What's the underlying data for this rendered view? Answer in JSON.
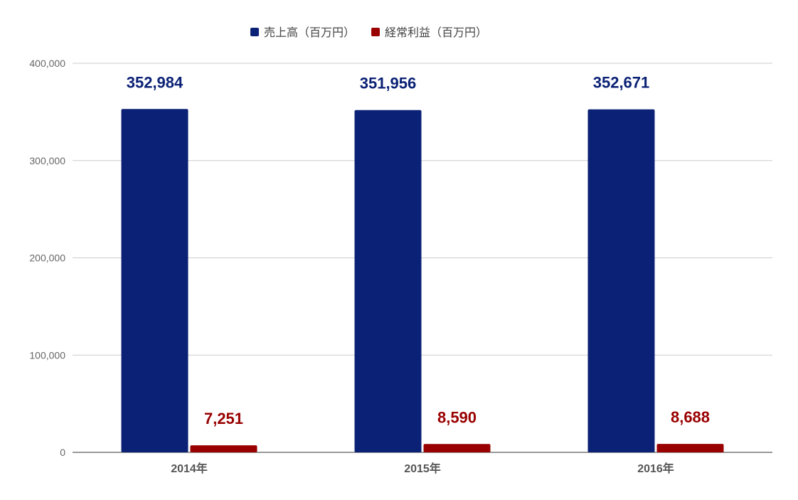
{
  "chart_data": {
    "type": "bar",
    "categories": [
      "2014年",
      "2015年",
      "2016年"
    ],
    "series": [
      {
        "name": "売上高（百万円）",
        "values": [
          352984,
          351956,
          352671
        ],
        "color": "#0b2175"
      },
      {
        "name": "経常利益（百万円）",
        "values": [
          7251,
          8590,
          8688
        ],
        "color": "#990000"
      }
    ],
    "data_labels": [
      [
        "352,984",
        "351,956",
        "352,671"
      ],
      [
        "7,251",
        "8,590",
        "8,688"
      ]
    ],
    "yticks": [
      0,
      100000,
      200000,
      300000,
      400000
    ],
    "ytick_labels": [
      "0",
      "100,000",
      "200,000",
      "300,000",
      "400,000"
    ],
    "ylim": [
      0,
      400000
    ],
    "grid": true,
    "legend_position": "top"
  }
}
